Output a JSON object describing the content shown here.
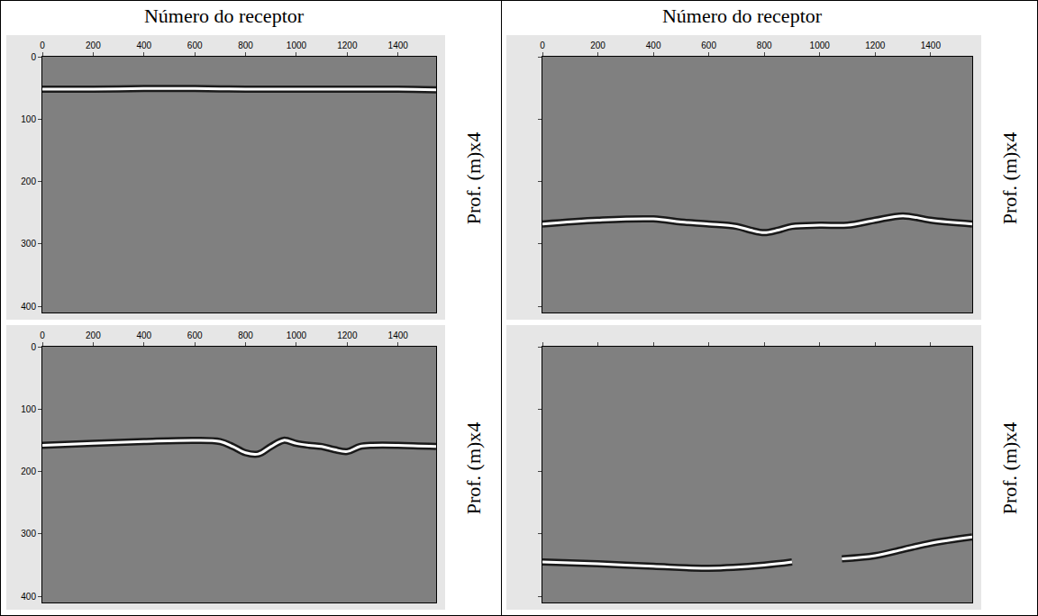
{
  "chart_data": [
    {
      "type": "line",
      "xlabel": "Número do receptor",
      "ylabel": "Prof. (m)x4",
      "x": [
        0,
        200,
        400,
        600,
        800,
        1000,
        1200,
        1400,
        1550
      ],
      "series": [
        {
          "color": "#ffffff",
          "values": [
            52,
            52,
            51,
            51,
            52,
            52,
            52,
            52,
            53
          ]
        }
      ],
      "xlim": [
        0,
        1550
      ],
      "ylim": [
        410,
        0
      ],
      "xticks": [
        0,
        200,
        400,
        600,
        800,
        1000,
        1200,
        1400
      ],
      "yticks": [
        0,
        100,
        200,
        300,
        400
      ],
      "grid": false,
      "tick_labels": true
    },
    {
      "type": "line",
      "xlabel": "Número do receptor",
      "ylabel": "Prof. (m)x4",
      "x": [
        0,
        200,
        400,
        500,
        600,
        700,
        750,
        800,
        850,
        900,
        1000,
        1100,
        1200,
        1300,
        1400,
        1550
      ],
      "series": [
        {
          "color": "#ffffff",
          "values": [
            268,
            262,
            260,
            265,
            268,
            272,
            278,
            282,
            278,
            272,
            270,
            270,
            262,
            255,
            262,
            268
          ]
        }
      ],
      "xlim": [
        0,
        1550
      ],
      "ylim": [
        410,
        0
      ],
      "xticks": [
        0,
        200,
        400,
        600,
        800,
        1000,
        1200,
        1400
      ],
      "yticks": [
        0,
        100,
        200,
        300,
        400
      ],
      "grid": false,
      "tick_labels": "x"
    },
    {
      "type": "line",
      "ylabel": "Prof. (m)x4",
      "x": [
        0,
        200,
        400,
        600,
        700,
        750,
        800,
        850,
        900,
        950,
        1000,
        1050,
        1100,
        1150,
        1200,
        1250,
        1300,
        1400,
        1550
      ],
      "series": [
        {
          "color": "#ffffff",
          "values": [
            158,
            155,
            152,
            150,
            152,
            160,
            170,
            172,
            160,
            150,
            155,
            158,
            160,
            165,
            168,
            160,
            158,
            158,
            160
          ]
        }
      ],
      "xlim": [
        0,
        1550
      ],
      "ylim": [
        410,
        0
      ],
      "xticks": [
        0,
        200,
        400,
        600,
        800,
        1000,
        1200,
        1400
      ],
      "yticks": [
        0,
        100,
        200,
        300,
        400
      ],
      "grid": false,
      "tick_labels": true
    },
    {
      "type": "line",
      "ylabel": "Prof. (m)x4",
      "x": [
        0,
        200,
        400,
        600,
        800,
        900,
        1000,
        1080,
        1200,
        1300,
        1400,
        1550
      ],
      "series": [
        {
          "color": "#ffffff",
          "values": [
            345,
            348,
            352,
            355,
            350,
            345,
            null,
            340,
            335,
            325,
            315,
            305
          ]
        }
      ],
      "xlim": [
        0,
        1550
      ],
      "ylim": [
        410,
        0
      ],
      "xticks": [
        0,
        200,
        400,
        600,
        800,
        1000,
        1200,
        1400
      ],
      "yticks": [
        0,
        100,
        200,
        300,
        400
      ],
      "grid": false,
      "tick_labels": false
    }
  ]
}
